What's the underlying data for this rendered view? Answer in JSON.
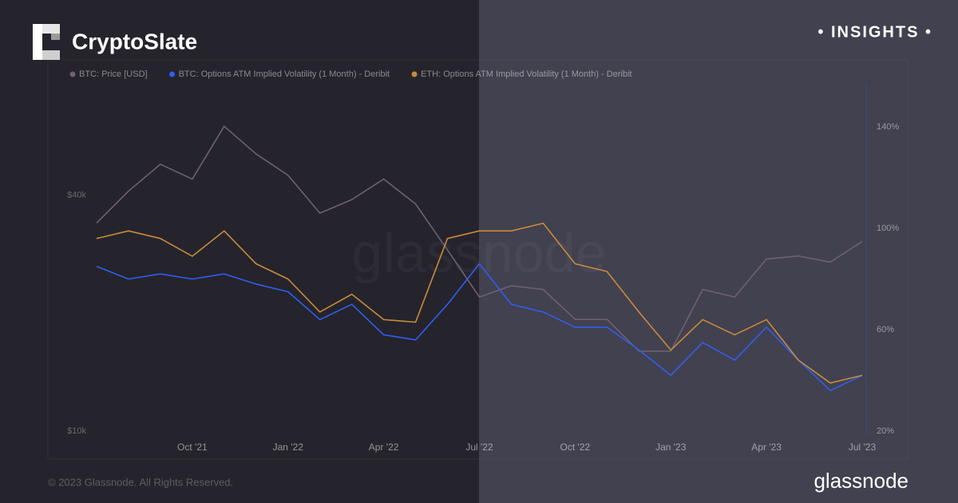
{
  "header": {
    "brand": "CryptoSlate",
    "tag": "• INSIGHTS •"
  },
  "chart_data": {
    "type": "line",
    "watermark": "glassnode",
    "x": [
      "2021-07",
      "2021-08",
      "2021-09",
      "2021-10",
      "2021-11",
      "2021-12",
      "2022-01",
      "2022-02",
      "2022-03",
      "2022-04",
      "2022-05",
      "2022-06",
      "2022-07",
      "2022-08",
      "2022-09",
      "2022-10",
      "2022-11",
      "2022-12",
      "2023-01",
      "2023-02",
      "2023-03",
      "2023-04",
      "2023-05",
      "2023-06",
      "2023-07"
    ],
    "xlim": [
      "2021-07",
      "2023-07"
    ],
    "xticks": [
      {
        "value": "2021-10",
        "label": "Oct '21"
      },
      {
        "value": "2022-01",
        "label": "Jan '22"
      },
      {
        "value": "2022-04",
        "label": "Apr '22"
      },
      {
        "value": "2022-07",
        "label": "Jul '22"
      },
      {
        "value": "2022-10",
        "label": "Oct '22"
      },
      {
        "value": "2023-01",
        "label": "Jan '23"
      },
      {
        "value": "2023-04",
        "label": "Apr '23"
      },
      {
        "value": "2023-07",
        "label": "Jul '23"
      }
    ],
    "ylog": true,
    "ylim": [
      10000,
      77000
    ],
    "yticks": [
      {
        "value": 10000,
        "label": "$10k"
      },
      {
        "value": 40000,
        "label": "$40k"
      }
    ],
    "y2lim": [
      20,
      157
    ],
    "y2ticks": [
      {
        "value": 20,
        "label": "20%"
      },
      {
        "value": 60,
        "label": "60%"
      },
      {
        "value": 100,
        "label": "100%"
      },
      {
        "value": 140,
        "label": "140%"
      }
    ],
    "series": [
      {
        "name": "BTC: Price [USD]",
        "color": "#6f6070",
        "axis": "y",
        "values": [
          34000,
          41000,
          48000,
          44000,
          60000,
          51000,
          45000,
          36000,
          39000,
          44000,
          38000,
          29000,
          22000,
          23500,
          23000,
          19300,
          19300,
          16000,
          16000,
          23000,
          22000,
          27500,
          28000,
          27000,
          30500
        ]
      },
      {
        "name": "BTC: Options ATM Implied Volatility (1 Month) - Deribit",
        "color": "#2f5ef0",
        "axis": "y2",
        "values": [
          85,
          80,
          82,
          80,
          82,
          78,
          75,
          64,
          70,
          58,
          56,
          70,
          86,
          70,
          67,
          61,
          61,
          52,
          42,
          55,
          48,
          61,
          48,
          36,
          42
        ]
      },
      {
        "name": "ETH: Options ATM Implied Volatility (1 Month) - Deribit",
        "color": "#c88a3c",
        "axis": "y2",
        "values": [
          96,
          99,
          96,
          89,
          99,
          86,
          80,
          67,
          74,
          64,
          63,
          96,
          99,
          99,
          102,
          86,
          83,
          67,
          52,
          64,
          58,
          64,
          48,
          39,
          42
        ]
      }
    ]
  },
  "footer": {
    "copyright": "© 2023 Glassnode. All Rights Reserved.",
    "logo": "glassnode"
  }
}
